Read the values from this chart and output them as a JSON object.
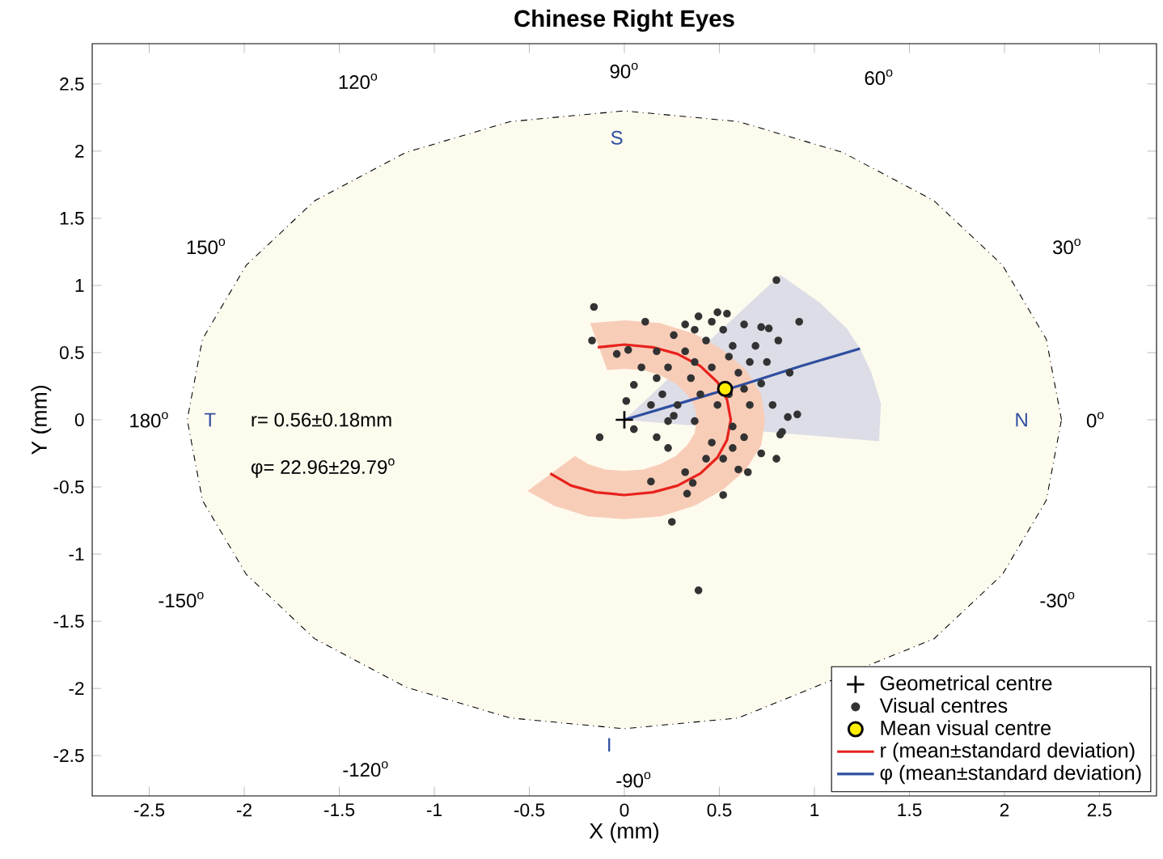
{
  "chart_data": {
    "type": "scatter",
    "title": "Chinese Right Eyes",
    "xlabel": "X (mm)",
    "ylabel": "Y (mm)",
    "xlim": [
      -2.8,
      2.8
    ],
    "ylim": [
      -2.8,
      2.8
    ],
    "xticks": [
      -2.5,
      -2,
      -1.5,
      -1,
      -0.5,
      0,
      0.5,
      1,
      1.5,
      2,
      2.5
    ],
    "yticks": [
      -2.5,
      -2,
      -1.5,
      -1,
      -0.5,
      0,
      0.5,
      1,
      1.5,
      2,
      2.5
    ],
    "grid": false,
    "legend": "bottom right",
    "series": [
      {
        "type": "area",
        "color": "#fdfbee",
        "line_style": "dashed",
        "x": [
          2.3,
          2.22,
          1.99,
          1.63,
          1.15,
          0.6,
          0,
          -0.6,
          -1.15,
          -1.63,
          -1.99,
          -2.22,
          -2.3,
          -2.22,
          -1.99,
          -1.63,
          -1.15,
          -0.6,
          0,
          0.6,
          1.63,
          1.99,
          2.22
        ],
        "values": [
          0,
          0.6,
          1.15,
          1.63,
          1.99,
          2.22,
          2.3,
          2.22,
          1.99,
          1.63,
          1.15,
          0.6,
          0,
          -0.6,
          -1.15,
          -1.63,
          -1.99,
          -2.22,
          -2.3,
          -2.22,
          -1.63,
          -1.15,
          -0.6
        ]
      },
      {
        "type": "area",
        "color": "#dcdde6",
        "x": [
          0,
          1.34,
          1.35,
          1.3,
          1.24,
          1.17,
          1.03,
          0.82
        ],
        "values": [
          0,
          -0.16,
          0.12,
          0.35,
          0.53,
          0.68,
          0.87,
          1.08
        ]
      },
      {
        "type": "area",
        "color": "#f8cdb8",
        "x": [
          -0.18,
          0,
          0.19,
          0.37,
          0.52,
          0.64,
          0.72,
          0.74,
          0.72,
          0.64,
          0.52,
          0.37,
          0.19,
          0,
          -0.19,
          -0.37,
          -0.51,
          -0.26,
          -0.19,
          -0.1,
          0,
          0.1,
          0.19,
          0.27,
          0.33,
          0.37,
          0.38,
          0.37,
          0.33,
          0.27,
          0.19,
          0.1,
          0,
          -0.09
        ],
        "values": [
          0.72,
          0.74,
          0.72,
          0.64,
          0.52,
          0.37,
          0.19,
          0,
          -0.19,
          -0.37,
          -0.52,
          -0.64,
          -0.72,
          -0.74,
          -0.72,
          -0.64,
          -0.53,
          -0.27,
          -0.33,
          -0.37,
          -0.38,
          -0.37,
          -0.33,
          -0.27,
          -0.19,
          -0.1,
          0,
          0.1,
          0.19,
          0.27,
          0.33,
          0.37,
          0.38,
          0.37
        ]
      },
      {
        "type": "scatter",
        "name": "Geometrical centre",
        "color": "#000000",
        "marker": "cross",
        "x": [
          0
        ],
        "values": [
          0
        ]
      },
      {
        "type": "scatter",
        "name": "Visual centres",
        "color": "#333333",
        "marker": "circle",
        "x": [
          0.8,
          0.92,
          -0.16,
          -0.17,
          -0.13,
          0.39,
          0.25,
          0.52,
          0.14,
          0.8,
          0.91,
          0.86,
          0.87,
          0.81,
          0.72,
          0.76,
          0.49,
          0.54,
          0.39,
          0.11,
          -0.04,
          0.02,
          0.05,
          0.01,
          0.05,
          0.17,
          0.23,
          0.32,
          0.36,
          0.33,
          0.6,
          0.65,
          0.72,
          0.82,
          0.83,
          0.23,
          0.32,
          0.43,
          0.57,
          0.66,
          0.72,
          0.66,
          0.57,
          0.46,
          0.37,
          0.28,
          0.2,
          0.17,
          0.26,
          0.37,
          0.52,
          0.6,
          0.49,
          0.4,
          0.35,
          0.46,
          0.55,
          0.78,
          0.63,
          0.43,
          0.26,
          0.14,
          0.09,
          0.32,
          0.46,
          0.63,
          0.69,
          0.75,
          0.23,
          0.17,
          0.52,
          0.57,
          0.37,
          0.55,
          0.63
        ],
        "values": [
          1.04,
          0.73,
          0.84,
          0.59,
          -0.13,
          -1.27,
          -0.76,
          -0.56,
          -0.46,
          -0.29,
          0.04,
          0.02,
          0.35,
          0.59,
          0.69,
          0.68,
          0.8,
          0.79,
          0.77,
          0.73,
          0.49,
          0.52,
          0.26,
          0.14,
          -0.07,
          -0.13,
          -0.21,
          -0.39,
          -0.47,
          -0.55,
          -0.37,
          -0.39,
          -0.25,
          -0.11,
          -0.09,
          0.39,
          0.51,
          0.59,
          0.55,
          0.43,
          0.27,
          0.11,
          -0.05,
          -0.17,
          -0.01,
          0.11,
          0.19,
          0.31,
          0.63,
          0.67,
          0.67,
          0.35,
          0.11,
          0.19,
          0.31,
          0.39,
          0.19,
          0.11,
          -0.13,
          -0.29,
          0.03,
          0.11,
          0.39,
          0.71,
          0.73,
          0.71,
          0.55,
          0.43,
          -0.01,
          0.51,
          -0.29,
          -0.21,
          0.43,
          0.47,
          0.23
        ]
      },
      {
        "type": "scatter",
        "name": "Mean visual centre",
        "color": "#ffee00",
        "marker": "circle",
        "x": [
          0.53
        ],
        "values": [
          0.23
        ]
      },
      {
        "type": "line",
        "name": "r (mean±standard deviation)",
        "color": "#e8221c",
        "x": [
          -0.14,
          0,
          0.15,
          0.28,
          0.4,
          0.49,
          0.54,
          0.56,
          0.54,
          0.49,
          0.4,
          0.28,
          0.15,
          0,
          -0.15,
          -0.28,
          -0.39
        ],
        "values": [
          0.54,
          0.56,
          0.54,
          0.49,
          0.4,
          0.28,
          0.15,
          0,
          -0.15,
          -0.28,
          -0.4,
          -0.49,
          -0.54,
          -0.56,
          -0.54,
          -0.49,
          -0.4
        ]
      },
      {
        "type": "line",
        "name": "φ (mean±standard deviation)",
        "color": "#2f4ea0",
        "x": [
          0,
          0.31,
          0.62,
          0.93,
          1.24
        ],
        "values": [
          0,
          0.13,
          0.26,
          0.4,
          0.53
        ]
      }
    ],
    "annotations": [
      "r= 0.56±0.18mm",
      "φ= 22.96±29.79$^{o}$",
      "90$^{o}$",
      "60$^{o}$",
      "120$^{o}$",
      "30$^{o}$",
      "150$^{o}$",
      "0$^{o}$",
      "180$^{o}$",
      "-30$^{o}$",
      "-150$^{o}$",
      "-120$^{o}$",
      "-90$^{o}$",
      "S",
      "N",
      "T",
      "I"
    ]
  }
}
